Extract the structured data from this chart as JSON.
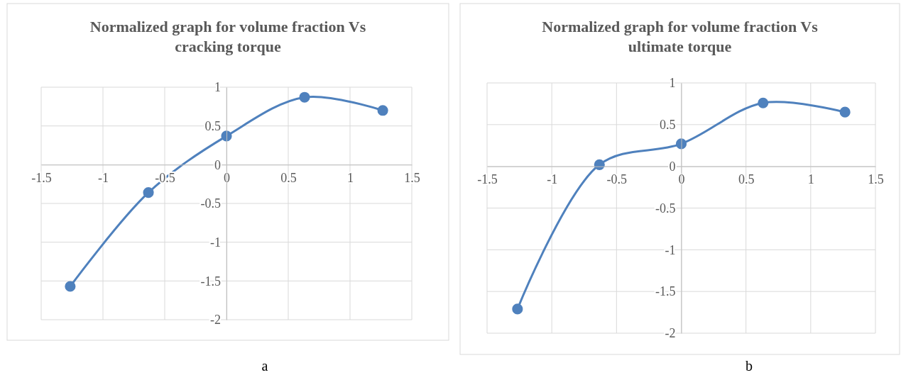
{
  "chart_data": [
    {
      "type": "line",
      "title": "Normalized graph for volume fraction Vs cracking torque",
      "x": [
        -1.265,
        -0.632,
        0,
        0.632,
        1.265
      ],
      "series": [
        {
          "color": "#4f81bd",
          "values": [
            -1.57,
            -0.36,
            0.37,
            0.87,
            0.7
          ]
        }
      ],
      "xlim": [
        -1.5,
        1.5
      ],
      "ylim": [
        -2,
        1
      ],
      "xticks": [
        -1.5,
        -1,
        -0.5,
        0,
        0.5,
        1,
        1.5
      ],
      "yticks": [
        -2,
        -1.5,
        -1,
        -0.5,
        0,
        0.5,
        1
      ],
      "grid": true,
      "marker": "circle",
      "line_style": "solid",
      "annotations": [
        "a"
      ]
    },
    {
      "type": "line",
      "title": "Normalized graph for volume fraction Vs ultimate torque",
      "x": [
        -1.265,
        -0.632,
        0,
        0.632,
        1.265
      ],
      "series": [
        {
          "color": "#4f81bd",
          "values": [
            -1.71,
            0.02,
            0.27,
            0.76,
            0.65
          ]
        }
      ],
      "xlim": [
        -1.5,
        1.5
      ],
      "ylim": [
        -2,
        1
      ],
      "xticks": [
        -1.5,
        -1,
        -0.5,
        0,
        0.5,
        1,
        1.5
      ],
      "yticks": [
        -2,
        -1.5,
        -1,
        -0.5,
        0,
        0.5,
        1
      ],
      "grid": true,
      "marker": "circle",
      "line_style": "solid",
      "annotations": [
        "b"
      ]
    }
  ]
}
